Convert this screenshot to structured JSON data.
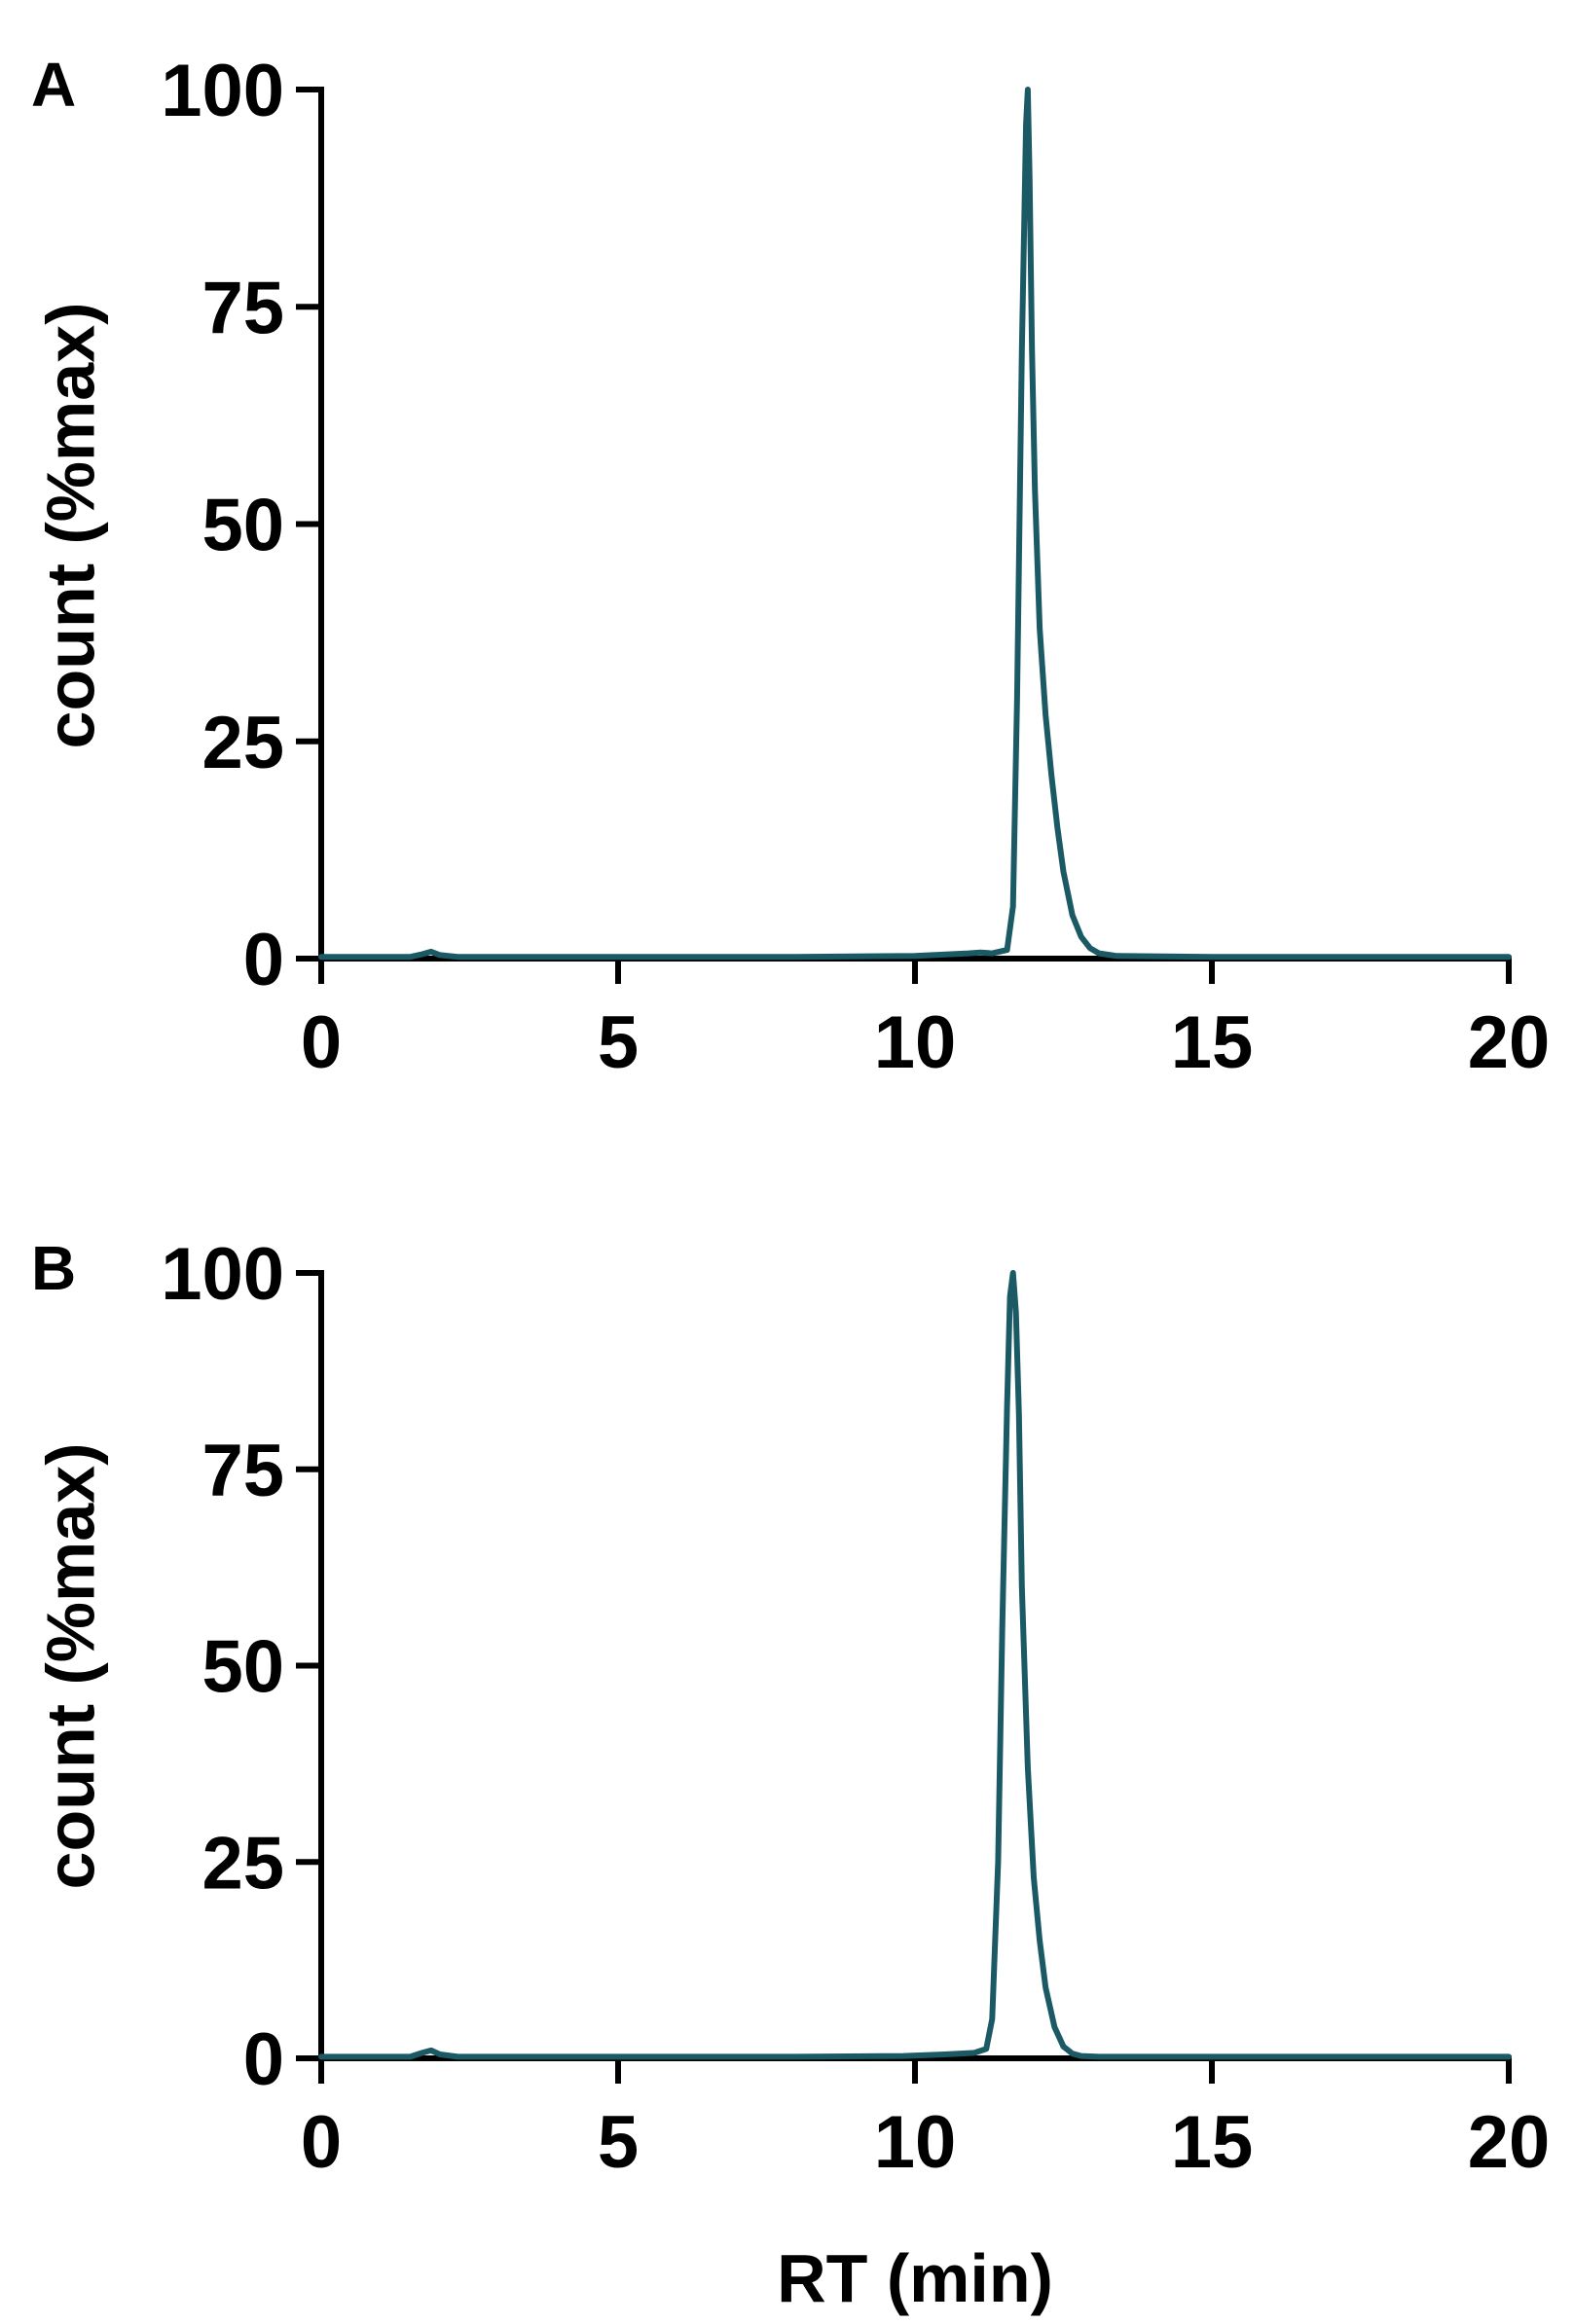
{
  "colors": {
    "series": "#1b5a64",
    "axis": "#000000",
    "background": "#ffffff"
  },
  "chart_data": [
    {
      "type": "line",
      "panel_label": "A",
      "title": "",
      "xlabel": "",
      "ylabel": "count (%max)",
      "xlim": [
        0,
        20
      ],
      "ylim": [
        0,
        100
      ],
      "xticks": [
        "0",
        "5",
        "10",
        "15",
        "20"
      ],
      "yticks": [
        "0",
        "25",
        "50",
        "75",
        "100"
      ],
      "grid": false,
      "series": [
        {
          "x": [
            0,
            1.5,
            1.7,
            1.85,
            2.0,
            2.3,
            5,
            8,
            10,
            10.9,
            11.1,
            11.3,
            11.55,
            11.65,
            11.72,
            11.8,
            11.87,
            11.9,
            11.93,
            11.97,
            12.02,
            12.1,
            12.2,
            12.3,
            12.4,
            12.5,
            12.65,
            12.8,
            12.95,
            13.1,
            13.4,
            15,
            17,
            20
          ],
          "y": [
            0.2,
            0.2,
            0.5,
            0.8,
            0.4,
            0.2,
            0.2,
            0.2,
            0.3,
            0.6,
            0.7,
            0.6,
            1.0,
            6,
            30,
            70,
            96,
            100,
            90,
            70,
            54,
            38,
            28,
            21,
            15,
            10,
            5,
            2.5,
            1.2,
            0.6,
            0.3,
            0.2,
            0.2,
            0.2
          ]
        }
      ]
    },
    {
      "type": "line",
      "panel_label": "B",
      "title": "",
      "xlabel": "RT (min)",
      "ylabel": "count (%max)",
      "xlim": [
        0,
        20
      ],
      "ylim": [
        0,
        100
      ],
      "xticks": [
        "0",
        "5",
        "10",
        "15",
        "20"
      ],
      "yticks": [
        "0",
        "25",
        "50",
        "75",
        "100"
      ],
      "grid": false,
      "series": [
        {
          "x": [
            0,
            1.5,
            1.7,
            1.85,
            2.0,
            2.3,
            5,
            8,
            9.8,
            10.5,
            11.0,
            11.2,
            11.3,
            11.4,
            11.47,
            11.55,
            11.6,
            11.65,
            11.7,
            11.75,
            11.8,
            11.9,
            12.0,
            12.1,
            12.2,
            12.35,
            12.5,
            12.65,
            12.8,
            13.1,
            15,
            17,
            20
          ],
          "y": [
            0.2,
            0.2,
            0.7,
            1.0,
            0.5,
            0.2,
            0.2,
            0.2,
            0.3,
            0.5,
            0.7,
            1.2,
            5,
            25,
            55,
            83,
            97,
            100,
            95,
            82,
            60,
            37,
            23,
            15,
            9,
            4,
            1.5,
            0.6,
            0.3,
            0.2,
            0.2,
            0.2,
            0.2
          ]
        }
      ]
    }
  ]
}
